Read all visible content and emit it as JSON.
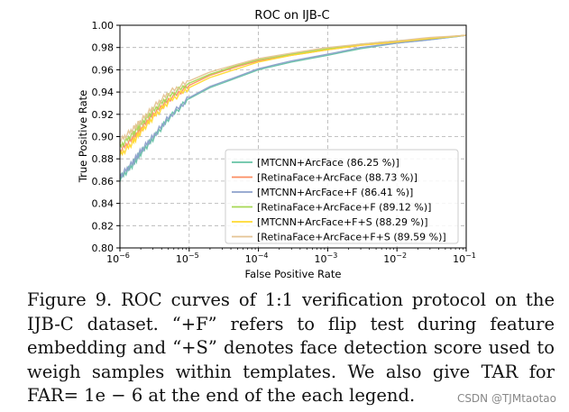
{
  "chart_data": {
    "type": "line",
    "title": "ROC on IJB-C",
    "xlabel": "False Positive Rate",
    "ylabel": "True Positive Rate",
    "xscale": "log",
    "xlim": [
      1e-06,
      0.1
    ],
    "ylim": [
      0.8,
      1.0
    ],
    "xticks": [
      {
        "value": 1e-06,
        "base": "10",
        "exp": "−6"
      },
      {
        "value": 1e-05,
        "base": "10",
        "exp": "−5"
      },
      {
        "value": 0.0001,
        "base": "10",
        "exp": "−4"
      },
      {
        "value": 0.001,
        "base": "10",
        "exp": "−3"
      },
      {
        "value": 0.01,
        "base": "10",
        "exp": "−2"
      },
      {
        "value": 0.1,
        "base": "10",
        "exp": "−1"
      }
    ],
    "yticks": [
      "0.80",
      "0.82",
      "0.84",
      "0.86",
      "0.88",
      "0.90",
      "0.92",
      "0.94",
      "0.96",
      "0.98",
      "1.00"
    ],
    "grid": true,
    "legend_position": "lower-right",
    "series": [
      {
        "name": "[MTCNN+ArcFace (86.25 %)]",
        "color": "#66c2a5",
        "x": [
          1e-06,
          1.5e-06,
          2e-06,
          3e-06,
          5e-06,
          1e-05,
          2e-05,
          5e-05,
          0.0001,
          0.0003,
          0.001,
          0.003,
          0.01,
          0.03,
          0.1
        ],
        "y": [
          0.862,
          0.874,
          0.885,
          0.898,
          0.916,
          0.934,
          0.944,
          0.953,
          0.96,
          0.967,
          0.973,
          0.979,
          0.984,
          0.987,
          0.991
        ]
      },
      {
        "name": "[RetinaFace+ArcFace (88.73 %)]",
        "color": "#fc8d62",
        "x": [
          1e-06,
          1.5e-06,
          2e-06,
          3e-06,
          5e-06,
          1e-05,
          2e-05,
          5e-05,
          0.0001,
          0.0003,
          0.001,
          0.003,
          0.01,
          0.03,
          0.1
        ],
        "y": [
          0.887,
          0.898,
          0.907,
          0.92,
          0.933,
          0.946,
          0.955,
          0.963,
          0.968,
          0.973,
          0.978,
          0.982,
          0.985,
          0.988,
          0.991
        ]
      },
      {
        "name": "[MTCNN+ArcFace+F (86.41 %)]",
        "color": "#8da0cb",
        "x": [
          1e-06,
          1.5e-06,
          2e-06,
          3e-06,
          5e-06,
          1e-05,
          2e-05,
          5e-05,
          0.0001,
          0.0003,
          0.001,
          0.003,
          0.01,
          0.03,
          0.1
        ],
        "y": [
          0.864,
          0.876,
          0.887,
          0.9,
          0.917,
          0.935,
          0.945,
          0.954,
          0.961,
          0.968,
          0.974,
          0.98,
          0.984,
          0.987,
          0.991
        ]
      },
      {
        "name": "[RetinaFace+ArcFace+F (89.12 %)]",
        "color": "#a6d854",
        "x": [
          1e-06,
          1.5e-06,
          2e-06,
          3e-06,
          5e-06,
          1e-05,
          2e-05,
          5e-05,
          0.0001,
          0.0003,
          0.001,
          0.003,
          0.01,
          0.03,
          0.1
        ],
        "y": [
          0.891,
          0.902,
          0.911,
          0.923,
          0.936,
          0.948,
          0.956,
          0.964,
          0.969,
          0.974,
          0.979,
          0.983,
          0.986,
          0.988,
          0.991
        ]
      },
      {
        "name": "[MTCNN+ArcFace+F+S (88.29 %)]",
        "color": "#ffd92f",
        "x": [
          1e-06,
          1.5e-06,
          2e-06,
          3e-06,
          5e-06,
          1e-05,
          2e-05,
          5e-05,
          0.0001,
          0.0003,
          0.001,
          0.003,
          0.01,
          0.03,
          0.1
        ],
        "y": [
          0.883,
          0.894,
          0.904,
          0.917,
          0.931,
          0.944,
          0.953,
          0.961,
          0.967,
          0.973,
          0.978,
          0.982,
          0.985,
          0.988,
          0.991
        ]
      },
      {
        "name": "[RetinaFace+ArcFace+F+S (89.59 %)]",
        "color": "#e5c494",
        "x": [
          1e-06,
          1.5e-06,
          2e-06,
          3e-06,
          5e-06,
          1e-05,
          2e-05,
          5e-05,
          0.0001,
          0.0003,
          0.001,
          0.003,
          0.01,
          0.03,
          0.1
        ],
        "y": [
          0.896,
          0.906,
          0.914,
          0.926,
          0.939,
          0.95,
          0.958,
          0.965,
          0.97,
          0.975,
          0.98,
          0.983,
          0.986,
          0.989,
          0.991
        ]
      }
    ]
  },
  "caption": "Figure 9. ROC curves of 1:1 verification protocol on the IJB-C dataset. “+F” refers to flip test during feature embedding and “+S” denotes face detection score used to weigh samples within templates. We also give TAR for FAR= 1e − 6 at the end of the each legend.",
  "watermark": "CSDN @TJMtaotao"
}
